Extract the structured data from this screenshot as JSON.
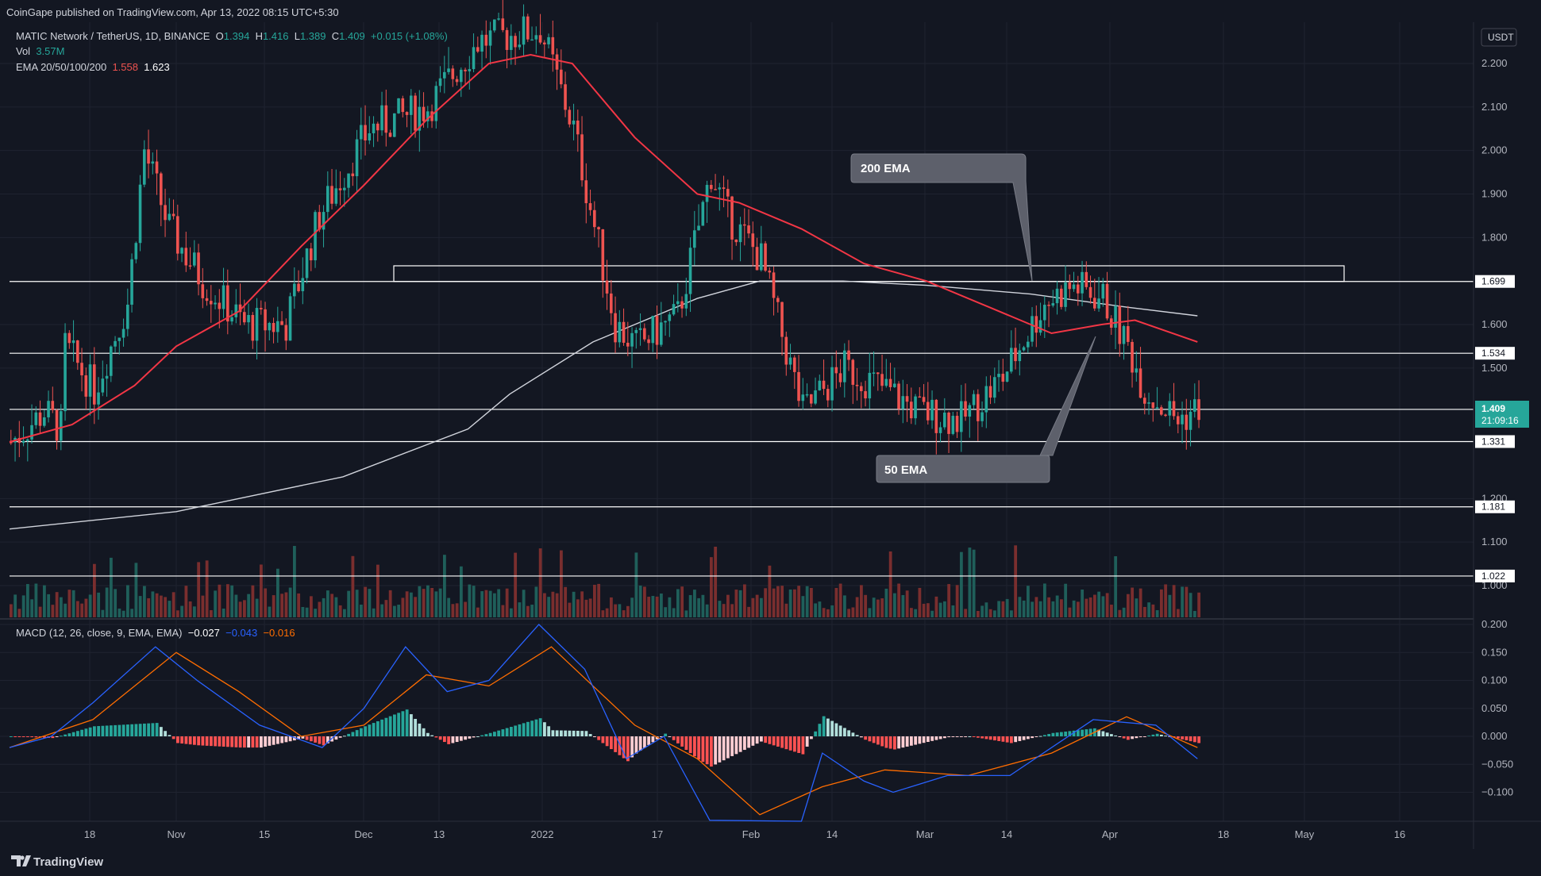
{
  "header": {
    "publisher": "CoinGape published on TradingView.com, Apr 13, 2022 08:15 UTC+5:30"
  },
  "legend": {
    "symbol": "MATIC Network / TetherUS, 1D, BINANCE",
    "o_label": "O",
    "o": "1.394",
    "h_label": "H",
    "h": "1.416",
    "l_label": "L",
    "l": "1.389",
    "c_label": "C",
    "c": "1.409",
    "change": "+0.015 (+1.08%)",
    "vol_label": "Vol",
    "vol": "3.57M",
    "ema_label": "EMA 20/50/100/200",
    "ema_a": "1.558",
    "ema_b": "1.623",
    "macd_label": "MACD (12, 26, close, 9, EMA, EMA)",
    "macd_hist": "−0.027",
    "macd_line": "−0.043",
    "macd_signal": "−0.016"
  },
  "currency_badge": "USDT",
  "footer": {
    "brand": "TradingView"
  },
  "annotations": {
    "ema200": "200 EMA",
    "ema50": "50 EMA"
  },
  "price_tags": {
    "current": "1.409",
    "countdown": "21:09:16"
  },
  "colors": {
    "bg": "#131722",
    "up": "#26a69a",
    "down": "#ef5350",
    "ema_red": "#f23645",
    "ema_white": "#d1d4dc",
    "macd": "#2962ff",
    "signal": "#ff6d00"
  },
  "chart_data": {
    "type": "candlestick",
    "x_ticks": [
      "18",
      "Nov",
      "15",
      "Dec",
      "13",
      "2022",
      "17",
      "Feb",
      "14",
      "Mar",
      "14",
      "Apr",
      "18",
      "May",
      "16"
    ],
    "y_ticks": [
      "2.200",
      "2.100",
      "2.000",
      "1.900",
      "1.800",
      "1.600",
      "1.500",
      "1.200",
      "1.100",
      "1.000"
    ],
    "ylim": [
      0.98,
      2.28
    ],
    "horizontal_levels": [
      "1.699",
      "1.534",
      "1.405",
      "1.331",
      "1.181",
      "1.022"
    ],
    "resistance_zone": [
      1.699,
      1.735
    ],
    "ema_200_points": [
      [
        0,
        1.13
      ],
      [
        40,
        1.17
      ],
      [
        80,
        1.25
      ],
      [
        110,
        1.36
      ],
      [
        120,
        1.44
      ],
      [
        140,
        1.56
      ],
      [
        165,
        1.66
      ],
      [
        180,
        1.7
      ],
      [
        200,
        1.7
      ],
      [
        220,
        1.69
      ],
      [
        245,
        1.67
      ],
      [
        268,
        1.64
      ],
      [
        285,
        1.62
      ]
    ],
    "ema_50_points": [
      [
        0,
        1.33
      ],
      [
        15,
        1.37
      ],
      [
        30,
        1.46
      ],
      [
        40,
        1.55
      ],
      [
        55,
        1.63
      ],
      [
        70,
        1.78
      ],
      [
        85,
        1.92
      ],
      [
        100,
        2.07
      ],
      [
        115,
        2.2
      ],
      [
        125,
        2.22
      ],
      [
        135,
        2.2
      ],
      [
        150,
        2.03
      ],
      [
        165,
        1.9
      ],
      [
        175,
        1.88
      ],
      [
        190,
        1.82
      ],
      [
        205,
        1.74
      ],
      [
        220,
        1.7
      ],
      [
        235,
        1.64
      ],
      [
        250,
        1.58
      ],
      [
        262,
        1.6
      ],
      [
        270,
        1.61
      ],
      [
        285,
        1.56
      ]
    ],
    "macd_y_ticks": [
      "0.200",
      "0.150",
      "0.100",
      "0.050",
      "0.000",
      "−0.050",
      "−0.100"
    ],
    "macd_ylim": [
      -0.15,
      0.2
    ],
    "macd_line_points": [
      [
        0,
        -0.02
      ],
      [
        10,
        0.0
      ],
      [
        20,
        0.06
      ],
      [
        35,
        0.16
      ],
      [
        45,
        0.1
      ],
      [
        60,
        0.02
      ],
      [
        75,
        -0.02
      ],
      [
        85,
        0.05
      ],
      [
        95,
        0.16
      ],
      [
        105,
        0.08
      ],
      [
        115,
        0.1
      ],
      [
        127,
        0.2
      ],
      [
        138,
        0.12
      ],
      [
        148,
        -0.04
      ],
      [
        157,
        0.0
      ],
      [
        168,
        -0.15
      ],
      [
        190,
        -0.16
      ],
      [
        195,
        -0.03
      ],
      [
        205,
        -0.08
      ],
      [
        212,
        -0.1
      ],
      [
        225,
        -0.07
      ],
      [
        240,
        -0.07
      ],
      [
        260,
        0.03
      ],
      [
        275,
        0.02
      ],
      [
        285,
        -0.04
      ]
    ],
    "signal_line_points": [
      [
        0,
        -0.02
      ],
      [
        20,
        0.03
      ],
      [
        40,
        0.15
      ],
      [
        55,
        0.08
      ],
      [
        70,
        0.0
      ],
      [
        85,
        0.02
      ],
      [
        100,
        0.11
      ],
      [
        115,
        0.09
      ],
      [
        130,
        0.16
      ],
      [
        150,
        0.02
      ],
      [
        165,
        -0.04
      ],
      [
        180,
        -0.14
      ],
      [
        195,
        -0.09
      ],
      [
        210,
        -0.06
      ],
      [
        230,
        -0.07
      ],
      [
        250,
        -0.03
      ],
      [
        268,
        0.035
      ],
      [
        285,
        -0.02
      ]
    ]
  }
}
